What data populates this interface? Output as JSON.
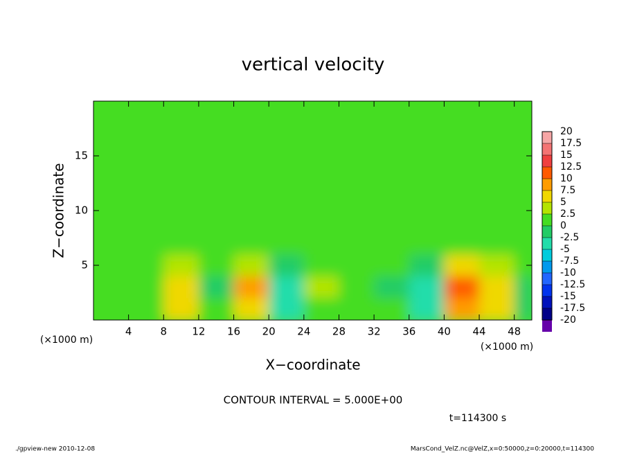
{
  "chart_data": {
    "type": "heatmap",
    "title": "vertical velocity",
    "x_label": "X−coordinate",
    "y_label": "Z−coordinate",
    "x_unit": "(×1000 m)",
    "y_unit": "(×1000 m)",
    "contour_note": "CONTOUR INTERVAL = 5.000E+00",
    "time_label": "t=114300 s",
    "footer_left": "./gpview-new  2010-12-08",
    "footer_right": "MarsCond_VelZ.nc@VelZ,x=0:50000,z=0:20000,t=114300",
    "xlim": [
      0,
      50
    ],
    "ylim": [
      0,
      20
    ],
    "xticks": [
      4,
      8,
      12,
      16,
      20,
      24,
      28,
      32,
      36,
      40,
      44,
      48
    ],
    "yticks": [
      5,
      10,
      15
    ],
    "xbins": [
      0,
      4,
      8,
      12,
      16,
      20,
      24,
      28,
      32,
      36,
      40,
      44,
      48,
      50
    ],
    "zbins": [
      0,
      2,
      4,
      6,
      10,
      14,
      20
    ],
    "values": [
      [
        2,
        1,
        5,
        0,
        6,
        -3,
        1,
        2,
        1,
        -5,
        9,
        6,
        -2
      ],
      [
        1,
        2,
        6,
        -1,
        8,
        -4,
        3,
        2,
        -1,
        -4,
        12,
        5,
        -2
      ],
      [
        1,
        1,
        3,
        1,
        4,
        -1,
        2,
        1,
        1,
        -1,
        5,
        3,
        1
      ],
      [
        1,
        1,
        1,
        1,
        1,
        1,
        1,
        1,
        1,
        1,
        1,
        1,
        1
      ],
      [
        1,
        2,
        1,
        1,
        1,
        1,
        1,
        1,
        1,
        1,
        1,
        1,
        1
      ],
      [
        1,
        1,
        1,
        1,
        1,
        0,
        1,
        1,
        1,
        1,
        1,
        1,
        1
      ]
    ],
    "levels": [
      20,
      17.5,
      15,
      12.5,
      10,
      7.5,
      5,
      2.5,
      0,
      -2.5,
      -5,
      -7.5,
      -10,
      -12.5,
      -15,
      -17.5,
      -20
    ],
    "level_colors": [
      "#f6a6a6",
      "#f47474",
      "#f04040",
      "#ff5a00",
      "#ff9c00",
      "#f0d800",
      "#b4e400",
      "#44dd22",
      "#22cc66",
      "#22ddaa",
      "#00ccdd",
      "#0099ee",
      "#2266ff",
      "#0033ee",
      "#0011bb",
      "#000088",
      "#6600aa"
    ]
  }
}
